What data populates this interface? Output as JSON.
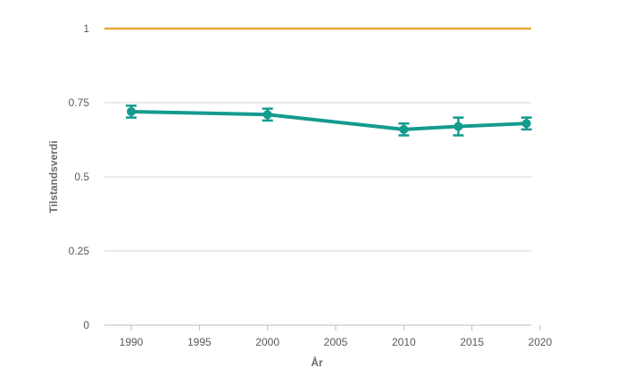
{
  "chart_data": {
    "type": "line",
    "xlabel": "År",
    "ylabel": "Tilstandsverdi",
    "xlim": [
      1990,
      2020
    ],
    "ylim": [
      0,
      1
    ],
    "x_ticks": [
      "1990",
      "1995",
      "2000",
      "2005",
      "2010",
      "2015",
      "2020"
    ],
    "y_ticks": [
      "0",
      "0.25",
      "0.5",
      "0.75",
      "1"
    ],
    "grid": true,
    "reference_line": {
      "y": 1,
      "color": "#e8a83a"
    },
    "series": [
      {
        "color": "#139b8e",
        "points": [
          {
            "x": 1990,
            "y": 0.72,
            "low": 0.7,
            "high": 0.74
          },
          {
            "x": 2000,
            "y": 0.71,
            "low": 0.69,
            "high": 0.73
          },
          {
            "x": 2010,
            "y": 0.66,
            "low": 0.64,
            "high": 0.68
          },
          {
            "x": 2014,
            "y": 0.67,
            "low": 0.64,
            "high": 0.7
          },
          {
            "x": 2019,
            "y": 0.68,
            "low": 0.66,
            "high": 0.7
          }
        ]
      }
    ],
    "colors": {
      "grid": "#d6d6d6",
      "axis": "#bdbdbd",
      "text": "#5a5a5a"
    }
  }
}
